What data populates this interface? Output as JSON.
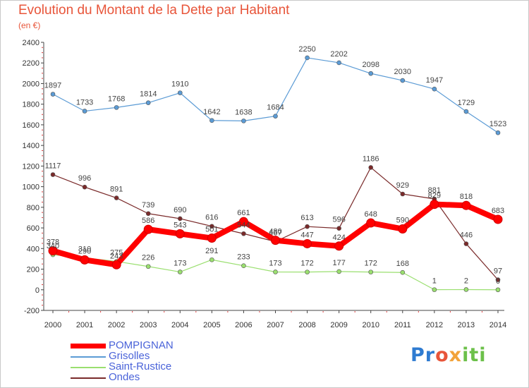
{
  "title": "Evolution du Montant de la Dette par Habitant",
  "subtitle": "(en €)",
  "logo_text": "Proxiti",
  "chart_data": {
    "type": "line",
    "title": "Evolution du Montant de la Dette par Habitant",
    "subtitle": "(en €)",
    "xlabel": "",
    "ylabel": "",
    "x": [
      2000,
      2001,
      2002,
      2003,
      2004,
      2005,
      2006,
      2007,
      2008,
      2009,
      2010,
      2011,
      2012,
      2013,
      2014
    ],
    "ylim": [
      -200,
      2400
    ],
    "yticks": [
      -200,
      0,
      200,
      400,
      600,
      800,
      1000,
      1200,
      1400,
      1600,
      1800,
      2000,
      2200,
      2400
    ],
    "grid": false,
    "legend_position": "bottom-left",
    "series": [
      {
        "name": "POMPIGNAN",
        "color": "#ff0000",
        "values": [
          378,
          290,
          243,
          586,
          543,
          501,
          661,
          480,
          447,
          424,
          648,
          590,
          829,
          818,
          683
        ]
      },
      {
        "name": "Grisolles",
        "color": "#5b9bd5",
        "values": [
          1897,
          1733,
          1768,
          1814,
          1910,
          1642,
          1638,
          1684,
          2250,
          2202,
          2098,
          2030,
          1947,
          1729,
          1523
        ]
      },
      {
        "name": "Saint-Rustice",
        "color": "#9adf6f",
        "values": [
          340,
          310,
          275,
          226,
          173,
          291,
          233,
          173,
          172,
          177,
          172,
          168,
          1,
          2,
          0
        ]
      },
      {
        "name": "Ondes",
        "color": "#7a2a2a",
        "values": [
          1117,
          996,
          891,
          739,
          690,
          616,
          544,
          467,
          613,
          596,
          1186,
          929,
          881,
          446,
          97
        ]
      }
    ]
  }
}
